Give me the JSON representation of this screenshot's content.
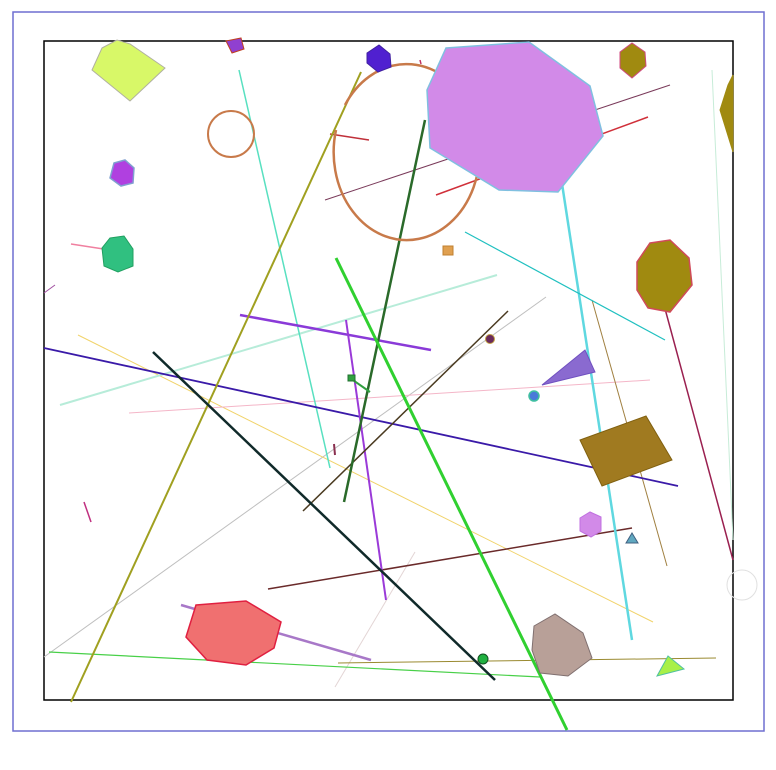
{
  "figure": {
    "kind": "random-shapes-diagram",
    "text": [],
    "colors": {
      "outer_border": "#6f6fd0",
      "inner_border": "#000000",
      "background": "#ffffff"
    }
  },
  "shape_inventory": {
    "lines": 32,
    "polygons": 22,
    "circles": 5,
    "arcs": 1
  }
}
